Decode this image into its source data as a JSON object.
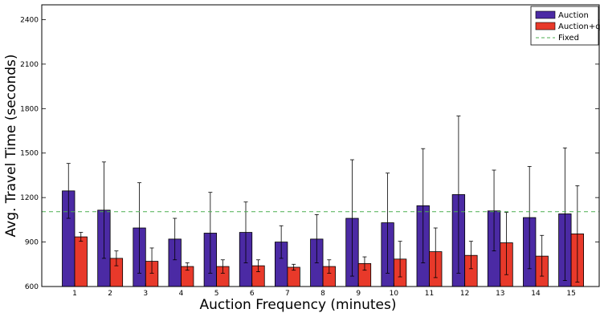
{
  "chart_data": {
    "type": "bar",
    "xlabel": "Auction Frequency (minutes)",
    "ylabel": "Avg. Travel Time (seconds)",
    "ylim": [
      600,
      2500
    ],
    "yticks": [
      600,
      900,
      1200,
      1500,
      1800,
      2100,
      2400
    ],
    "categories": [
      "1",
      "2",
      "3",
      "4",
      "5",
      "6",
      "7",
      "8",
      "9",
      "10",
      "11",
      "12",
      "13",
      "14",
      "15"
    ],
    "series": [
      {
        "name": "Auction",
        "color": "#4b2aa4",
        "values": [
          1245,
          1115,
          995,
          920,
          960,
          965,
          900,
          920,
          1060,
          1030,
          1145,
          1220,
          1110,
          1065,
          1090
        ],
        "err_low": [
          1060,
          790,
          690,
          780,
          690,
          760,
          790,
          760,
          670,
          690,
          760,
          690,
          840,
          720,
          640
        ],
        "err_high": [
          1430,
          1440,
          1300,
          1060,
          1235,
          1170,
          1010,
          1085,
          1455,
          1365,
          1530,
          1750,
          1385,
          1410,
          1535
        ]
      },
      {
        "name": "Auction+q",
        "color": "#e8392a",
        "values": [
          935,
          790,
          770,
          735,
          735,
          740,
          730,
          735,
          755,
          785,
          835,
          810,
          895,
          805,
          955
        ],
        "err_low": [
          905,
          740,
          690,
          710,
          690,
          700,
          710,
          690,
          710,
          665,
          660,
          720,
          680,
          670,
          630
        ],
        "err_high": [
          965,
          840,
          860,
          760,
          780,
          780,
          750,
          780,
          800,
          905,
          995,
          905,
          1100,
          945,
          1280
        ]
      }
    ],
    "reference_line": {
      "name": "Fixed",
      "value": 1105,
      "color": "#4caf50"
    },
    "legend_position": "top-right",
    "grid": false
  }
}
